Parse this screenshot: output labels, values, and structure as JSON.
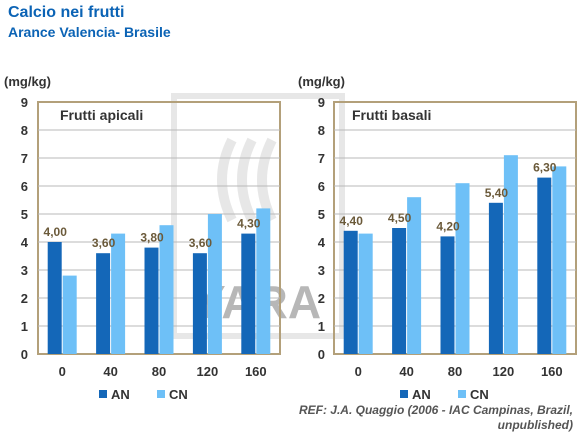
{
  "header": {
    "title": "Calcio nei frutti",
    "subtitle": "Arance Valencia- Brasile"
  },
  "ref_text": "REF: J.A. Quaggio (2006 - IAC Campinas, Brazil, unpublished)",
  "colors": {
    "AN": "#1467b8",
    "CN": "#6ec0f7",
    "frame": "#b3a07a",
    "grid": "#b8b8b8",
    "title": "#0b63b5",
    "watermark": "#bdbdbd"
  },
  "watermark": "YARA",
  "chart_data": [
    {
      "type": "bar",
      "title": "Frutti apicali",
      "ylabel": "(mg/kg)",
      "ylim": [
        0,
        9
      ],
      "yticks": [
        "0",
        "1",
        "2",
        "3",
        "4",
        "5",
        "6",
        "7",
        "8",
        "9"
      ],
      "categories": [
        "0",
        "40",
        "80",
        "120",
        "160"
      ],
      "series": [
        {
          "name": "AN",
          "values": [
            4.0,
            3.6,
            3.8,
            3.6,
            4.3
          ]
        },
        {
          "name": "CN",
          "values": [
            2.8,
            4.3,
            4.6,
            5.0,
            5.2
          ]
        }
      ],
      "data_labels": [
        "4,00",
        "3,60",
        "3,80",
        "3,60",
        "4,30"
      ],
      "grid": true,
      "legend": "bottom"
    },
    {
      "type": "bar",
      "title": "Frutti basali",
      "ylabel": "(mg/kg)",
      "ylim": [
        0,
        9
      ],
      "yticks": [
        "0",
        "1",
        "2",
        "3",
        "4",
        "5",
        "6",
        "7",
        "8",
        "9"
      ],
      "categories": [
        "0",
        "40",
        "80",
        "120",
        "160"
      ],
      "series": [
        {
          "name": "AN",
          "values": [
            4.4,
            4.5,
            4.2,
            5.4,
            6.3
          ]
        },
        {
          "name": "CN",
          "values": [
            4.3,
            5.6,
            6.1,
            7.1,
            6.7
          ]
        }
      ],
      "data_labels": [
        "4,40",
        "4,50",
        "4,20",
        "5,40",
        "6,30"
      ],
      "grid": true,
      "legend": "bottom"
    }
  ]
}
